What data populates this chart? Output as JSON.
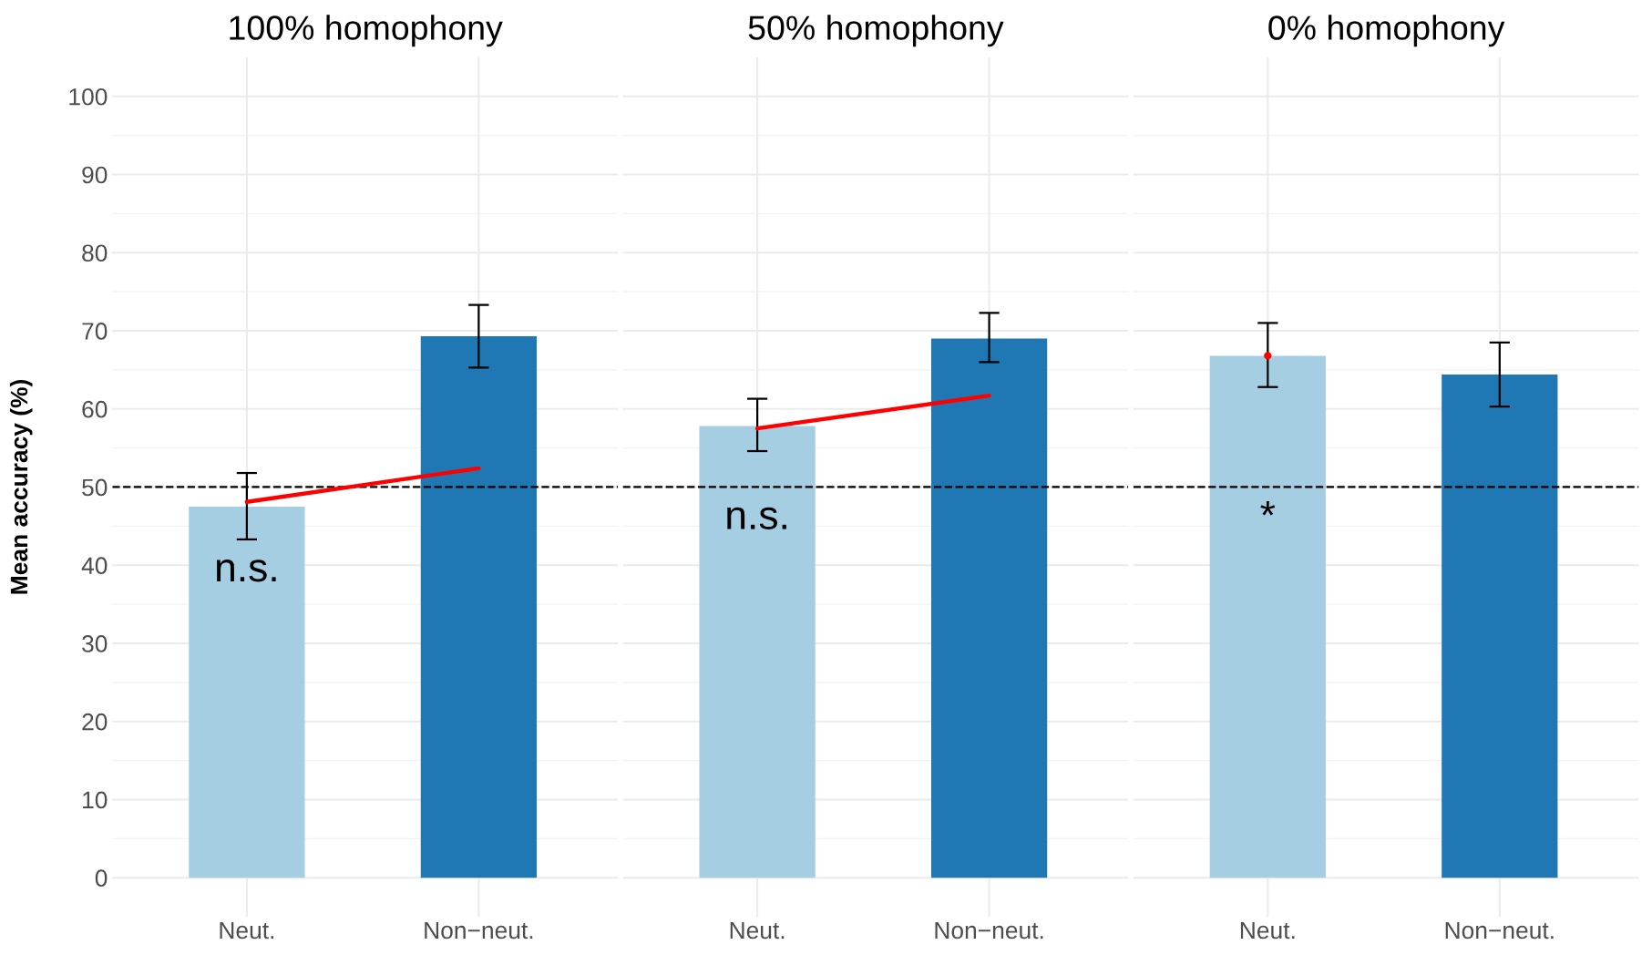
{
  "chart_data": [
    {
      "type": "bar",
      "title": "100% homophony",
      "ylabel": "Mean accuracy (%)",
      "categories": [
        "Neut.",
        "Non−neut."
      ],
      "ylim": [
        -5,
        105
      ],
      "yticks": [
        0,
        10,
        20,
        30,
        40,
        50,
        60,
        70,
        80,
        90,
        100
      ],
      "grid": true,
      "series": [
        {
          "colors": [
            "#a6cee3",
            "#1f78b4"
          ],
          "values": [
            47.5,
            69.3
          ],
          "errors": [
            [
              43.3,
              51.8
            ],
            [
              65.3,
              73.3
            ]
          ]
        },
        {
          "type": "line",
          "color": "#ff0000",
          "values": [
            48.1,
            52.4
          ]
        }
      ],
      "ref_lines": [
        {
          "axis": "y",
          "value": 50,
          "color": "#000000",
          "line_style": "dashed"
        }
      ],
      "annotations": [
        "n.s."
      ]
    },
    {
      "type": "bar",
      "title": "50% homophony",
      "categories": [
        "Neut.",
        "Non−neut."
      ],
      "ylim": [
        -5,
        105
      ],
      "yticks": [
        0,
        10,
        20,
        30,
        40,
        50,
        60,
        70,
        80,
        90,
        100
      ],
      "grid": true,
      "tick_labels": "x",
      "series": [
        {
          "colors": [
            "#a6cee3",
            "#1f78b4"
          ],
          "values": [
            57.8,
            69.0
          ],
          "errors": [
            [
              54.6,
              61.3
            ],
            [
              66.0,
              72.3
            ]
          ]
        },
        {
          "type": "line",
          "color": "#ff0000",
          "values": [
            57.5,
            61.7
          ]
        }
      ],
      "ref_lines": [
        {
          "axis": "y",
          "value": 50,
          "color": "#000000",
          "line_style": "dashed"
        }
      ],
      "annotations": [
        "n.s."
      ]
    },
    {
      "type": "bar",
      "title": "0% homophony",
      "categories": [
        "Neut.",
        "Non−neut."
      ],
      "ylim": [
        -5,
        105
      ],
      "yticks": [
        0,
        10,
        20,
        30,
        40,
        50,
        60,
        70,
        80,
        90,
        100
      ],
      "grid": true,
      "tick_labels": "x",
      "series": [
        {
          "colors": [
            "#a6cee3",
            "#1f78b4"
          ],
          "values": [
            66.8,
            64.4
          ],
          "errors": [
            [
              62.8,
              71.0
            ],
            [
              60.3,
              68.5
            ]
          ]
        },
        {
          "type": "line",
          "color": "#ff0000",
          "marker": "circle",
          "values": [
            66.8,
            null
          ]
        }
      ],
      "ref_lines": [
        {
          "axis": "y",
          "value": 50,
          "color": "#000000",
          "line_style": "dashed"
        }
      ],
      "annotations": [
        "*"
      ]
    }
  ]
}
